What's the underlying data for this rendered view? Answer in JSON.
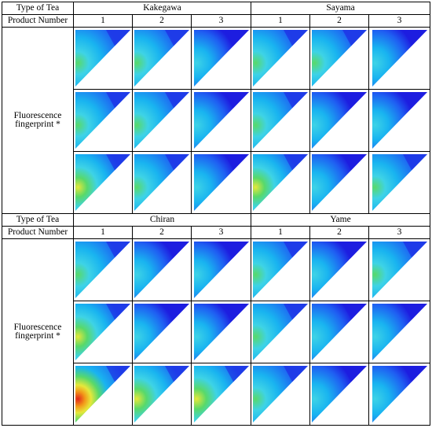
{
  "tables": [
    {
      "header_type_label": "Type of Tea",
      "header_product_label": "Product Number",
      "teas": [
        {
          "name": "Kakegawa",
          "products": [
            "1",
            "2",
            "3"
          ]
        },
        {
          "name": "Sayama",
          "products": [
            "1",
            "2",
            "3"
          ]
        }
      ],
      "row_label_line1": "Fluorescence",
      "row_label_line2": "fingerprint *",
      "intensity": [
        [
          0.62,
          0.6,
          0.42,
          0.65,
          0.6,
          0.5
        ],
        [
          0.58,
          0.66,
          0.44,
          0.68,
          0.45,
          0.4
        ],
        [
          0.74,
          0.62,
          0.52,
          0.72,
          0.5,
          0.58
        ]
      ]
    },
    {
      "header_type_label": "Type of Tea",
      "header_product_label": "Product Number",
      "teas": [
        {
          "name": "Chiran",
          "products": [
            "1",
            "2",
            "3"
          ]
        },
        {
          "name": "Yame",
          "products": [
            "1",
            "2",
            "3"
          ]
        }
      ],
      "row_label_line1": "Fluorescence",
      "row_label_line2": "fingerprint *",
      "intensity": [
        [
          0.7,
          0.45,
          0.38,
          0.6,
          0.4,
          0.62
        ],
        [
          0.75,
          0.4,
          0.35,
          0.7,
          0.55,
          0.5
        ],
        [
          0.98,
          0.82,
          0.88,
          0.58,
          0.5,
          0.52
        ]
      ]
    }
  ],
  "colors": {
    "deep_blue": "#1d1ee0",
    "blue": "#1f5ff2",
    "cyan": "#19b4f0",
    "light_cyan": "#3ed3e6",
    "green": "#58d96a",
    "yellow": "#e6e83a",
    "orange": "#f29a1a",
    "red": "#e3261c"
  }
}
